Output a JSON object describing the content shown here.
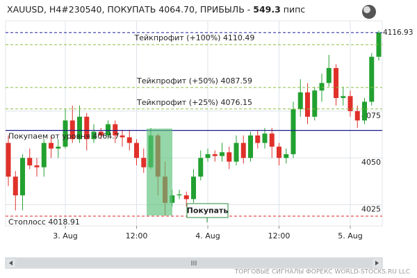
{
  "chart_data": {
    "type": "candlestick",
    "title": {
      "text": "XAUUSD, H4#230540, ПОКУПАТЬ 4064.70, ПРИБЫЛЬ -",
      "profit": 549.3,
      "unit": "пипс"
    },
    "categories": [
      null,
      null,
      null,
      null,
      null,
      null,
      null,
      null,
      "3. Aug",
      null,
      null,
      null,
      null,
      null,
      null,
      null,
      null,
      null,
      "12:00",
      null,
      null,
      null,
      null,
      null,
      null,
      null,
      null,
      null,
      "4. Aug",
      null,
      null,
      null,
      null,
      null,
      null,
      null,
      null,
      null,
      "12:00",
      null,
      null,
      null,
      null,
      null,
      null,
      null,
      null,
      null,
      "5. Aug",
      null,
      null,
      null,
      null
    ],
    "open": [
      4058,
      4040,
      4030,
      4050,
      4046,
      4045,
      4058,
      4055,
      4056,
      4070,
      4060,
      4072,
      4060,
      4064,
      4062,
      4068,
      4062,
      4061,
      4058,
      4050,
      4045,
      4062,
      4040,
      4026,
      4030,
      4030,
      4028,
      4040,
      4050,
      4052,
      4051,
      4053,
      4048,
      4058,
      4050,
      4062,
      4058,
      4063,
      4056,
      4050,
      4052,
      4076,
      4085,
      4072,
      4086,
      4090,
      4098,
      4082,
      4083,
      4075,
      4070,
      4080,
      4104
    ],
    "high": [
      4062,
      4043,
      4052,
      4055,
      4050,
      4060,
      4062,
      4060,
      4076,
      4078,
      4078,
      4074,
      4068,
      4066,
      4070,
      4070,
      4065,
      4065,
      4060,
      4055,
      4066,
      4063,
      4048,
      4033,
      4033,
      4032,
      4044,
      4054,
      4055,
      4054,
      4058,
      4056,
      4062,
      4062,
      4064,
      4065,
      4066,
      4066,
      4058,
      4055,
      4080,
      4092,
      4090,
      4088,
      4095,
      4105,
      4100,
      4088,
      4086,
      4078,
      4082,
      4106,
      4118
    ],
    "low": [
      4035,
      4022,
      4022,
      4044,
      4040,
      4040,
      4050,
      4050,
      4055,
      4058,
      4058,
      4054,
      4058,
      4060,
      4060,
      4058,
      4056,
      4054,
      4046,
      4042,
      4044,
      4030,
      4019,
      4024,
      4028,
      4024,
      4026,
      4038,
      4048,
      4048,
      4048,
      4044,
      4046,
      4047,
      4048,
      4055,
      4055,
      4050,
      4046,
      4047,
      4050,
      4072,
      4068,
      4070,
      4080,
      4088,
      4078,
      4078,
      4072,
      4066,
      4068,
      4078,
      4102
    ],
    "close": [
      4040,
      4030,
      4050,
      4046,
      4045,
      4058,
      4055,
      4056,
      4070,
      4060,
      4072,
      4060,
      4064,
      4062,
      4068,
      4062,
      4061,
      4058,
      4050,
      4045,
      4062,
      4040,
      4026,
      4030,
      4030.5,
      4028,
      4040,
      4050,
      4052,
      4051,
      4053,
      4048,
      4058,
      4050,
      4062,
      4058,
      4063,
      4056,
      4050,
      4052,
      4076,
      4085,
      4072,
      4086,
      4090,
      4098,
      4082,
      4083,
      4075,
      4070,
      4080,
      4104,
      4116.93
    ],
    "up_color": "#22a030",
    "down_color": "#e0302a",
    "ylim": [
      4013.7,
      4123.2
    ],
    "yticks": [
      4025,
      4050,
      4075
    ],
    "grid": true,
    "current_price": 4116.93,
    "levels": [
      {
        "label": "Тейкпрофит (+100%)",
        "value": 4110.49,
        "color": "#8cbf40",
        "style": "dashed",
        "align": "center"
      },
      {
        "label": "Тейкпрофит (+50%)",
        "value": 4087.59,
        "color": "#8cbf40",
        "style": "dashed",
        "align": "center"
      },
      {
        "label": "Тейкпрофит (+25%)",
        "value": 4076.15,
        "color": "#8cbf40",
        "style": "dashed",
        "align": "center"
      },
      {
        "label": "Покупаем от уровня",
        "value": 4064.7,
        "color": "#1a1a8c",
        "style": "solid",
        "align": "left"
      },
      {
        "label": "Стоплосс",
        "value": 4018.91,
        "color": "#e02020",
        "style": "dashed",
        "align": "left"
      }
    ],
    "button": "Покупать",
    "footer": "ТОРГОВЫЕ СИГНАЛЫ ФОРЕКС WORLD-STOCKS.RU LLC"
  }
}
